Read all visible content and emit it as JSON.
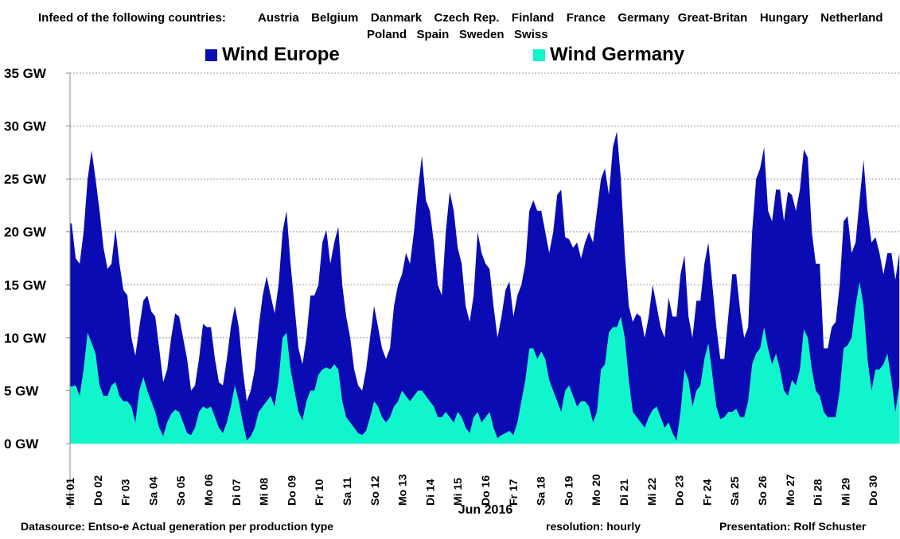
{
  "header": {
    "intro": "Infeed of the following countries:",
    "countries_line1": "Austria   Belgium   Danmark   Czech Rep.   Finland   France   Germany  Great-Britan   Hungary   Netherland",
    "countries_line2": "Poland   Spain   Sweden   Swiss"
  },
  "footer": {
    "source": "Datasource: Entso-e  Actual generation per production type",
    "resolution": "resolution: hourly",
    "presentation": "Presentation:  Rolf Schuster"
  },
  "colors": {
    "europe": "#0b0bb3",
    "germany": "#11f5cc",
    "grid": "#9a9a9a"
  },
  "chart_data": {
    "type": "area",
    "xlabel": "Jun 2016",
    "ylabel": "",
    "ylim": [
      0,
      35
    ],
    "yticks": [
      "0 GW",
      "5 GW",
      "10 GW",
      "15 GW",
      "20 GW",
      "25 GW",
      "30 GW",
      "35 GW"
    ],
    "ytick_values": [
      0,
      5,
      10,
      15,
      20,
      25,
      30,
      35
    ],
    "xlim_days": [
      0,
      30
    ],
    "xticks": [
      "Mi 01",
      "Do 02",
      "Fr 03",
      "Sa 04",
      "So 05",
      "Mo 06",
      "Di 07",
      "Mi 08",
      "Do 09",
      "Fr 10",
      "Sa 11",
      "So 12",
      "Mo 13",
      "Di 14",
      "Mi 15",
      "Do 16",
      "Fr 17",
      "Sa 18",
      "So 19",
      "Mo 20",
      "Di 21",
      "Mi 22",
      "Do 23",
      "Fr 24",
      "Sa 25",
      "So 26",
      "Mo 27",
      "Di 28",
      "Mi 29",
      "Do 30"
    ],
    "grid": true,
    "legend_position": "top",
    "x_start_days": 0.06,
    "x_step_days": 0.1437,
    "series": [
      {
        "name": "Wind Europe",
        "unit": "GW",
        "values": [
          20.8,
          17.5,
          17,
          20,
          25,
          27.7,
          25,
          22,
          18.5,
          16.5,
          17,
          20.3,
          17,
          14.5,
          14,
          10,
          8.3,
          11,
          13.5,
          14,
          12.5,
          12,
          9,
          5.8,
          7,
          10,
          12.3,
          12,
          10,
          8,
          5,
          5.5,
          8,
          11.3,
          11,
          11,
          8,
          5.8,
          5.5,
          8,
          11,
          13,
          11,
          7,
          4,
          5,
          7,
          11,
          14,
          15.8,
          14,
          12.3,
          15,
          20,
          22,
          17,
          13,
          9,
          7.5,
          10,
          14,
          14,
          15,
          19,
          20.2,
          17,
          19,
          20.5,
          15,
          12,
          10,
          7,
          5.5,
          5,
          7,
          10,
          13,
          11,
          9,
          8,
          9,
          13,
          15,
          16,
          18,
          17,
          20,
          24,
          27.2,
          23,
          22,
          19,
          15,
          14,
          20,
          23.8,
          22,
          18.5,
          17,
          13,
          11.5,
          14,
          20,
          18,
          17,
          16.5,
          13,
          10,
          12,
          14.5,
          15.3,
          12,
          14,
          15,
          17,
          22,
          23,
          22,
          22,
          20,
          18,
          20,
          23.5,
          24,
          19.5,
          19.3,
          18.5,
          19,
          17.5,
          19,
          20,
          19,
          22,
          25,
          26,
          23.5,
          28,
          29.5,
          25,
          18,
          13,
          11.5,
          12.3,
          12,
          10,
          12,
          15,
          13,
          11,
          10,
          13.8,
          12,
          12,
          16,
          17.8,
          12,
          10,
          13.5,
          13.5,
          17,
          19,
          15,
          11,
          8,
          8,
          12,
          16,
          16,
          12.5,
          10,
          11,
          20,
          25,
          26,
          28,
          22,
          21,
          24,
          24,
          21,
          23.8,
          23.5,
          22,
          24,
          27.8,
          27,
          20,
          17,
          17,
          9,
          9,
          11,
          11.5,
          15,
          21,
          21.5,
          18,
          19,
          23,
          26.8,
          22,
          19,
          19.5,
          18,
          16,
          18,
          18,
          15.5,
          18
        ]
      },
      {
        "name": "Wind Germany",
        "unit": "GW",
        "values": [
          5.4,
          5.5,
          4.5,
          7,
          10.5,
          9.5,
          8.5,
          5.5,
          4.5,
          4.5,
          5.5,
          5.8,
          4.5,
          4,
          4,
          3.5,
          2,
          5,
          6.3,
          5,
          4,
          3,
          1.5,
          0.7,
          2,
          2.8,
          3.2,
          3,
          2,
          1,
          0.8,
          1.5,
          3,
          3.5,
          3.3,
          3.5,
          2.5,
          1.5,
          1,
          2,
          3.5,
          5.5,
          4,
          2,
          0.3,
          0.7,
          1.5,
          3,
          3.5,
          4,
          4.5,
          3.5,
          6,
          10,
          10.5,
          7,
          5,
          3,
          2.2,
          4,
          5,
          5,
          6.5,
          7,
          7.2,
          7,
          7.5,
          7,
          4,
          2.5,
          2,
          1.5,
          1,
          0.8,
          1.2,
          2.5,
          4,
          3.5,
          2.5,
          2,
          2.5,
          3.5,
          4,
          5,
          4.5,
          4,
          4.5,
          5,
          5,
          4.5,
          4,
          3.5,
          2.5,
          2.5,
          3,
          2.5,
          2,
          3,
          2.5,
          1.5,
          1,
          2.5,
          3,
          2,
          2.5,
          3,
          1.5,
          0.5,
          0.8,
          1,
          1.2,
          0.8,
          2,
          4,
          6,
          9,
          9,
          8,
          8.7,
          8,
          6,
          5,
          4,
          3,
          5,
          5.5,
          4.5,
          3.5,
          4,
          4,
          3.5,
          2,
          3,
          7,
          7.5,
          10.5,
          11,
          11,
          12,
          10,
          6,
          3,
          2.5,
          2,
          1.5,
          2.5,
          3.2,
          3.5,
          2.5,
          1.5,
          2,
          1,
          0.3,
          3,
          7,
          6,
          3.5,
          5,
          5.5,
          8,
          9.5,
          6.5,
          3.5,
          2.3,
          2.5,
          3,
          3,
          3.3,
          2.5,
          2.5,
          4,
          7.5,
          8.5,
          9,
          11,
          9,
          7.5,
          8.5,
          7,
          5,
          4.5,
          6,
          5.5,
          7,
          10.8,
          10,
          7,
          5,
          4.5,
          3,
          2.5,
          2.5,
          2.5,
          5,
          9,
          9.3,
          10,
          13,
          15.3,
          13,
          8,
          5,
          7,
          7,
          7.5,
          8.5,
          6,
          3,
          5.5
        ]
      }
    ]
  }
}
